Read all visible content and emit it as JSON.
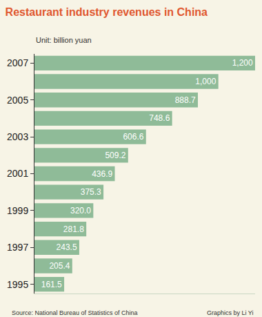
{
  "chart_data": {
    "type": "bar",
    "orientation": "horizontal",
    "title": "Restaurant industry revenues in China",
    "subtitle": "Unit: billion yuan",
    "source": "Source: National Bureau of Statistics of China",
    "credit": "Graphics by Li Yi",
    "categories": [
      "1995",
      null,
      "1997",
      null,
      "1999",
      null,
      "2001",
      null,
      "2003",
      null,
      "2005",
      null,
      "2007"
    ],
    "values": [
      161.5,
      205.4,
      243.5,
      281.8,
      320.0,
      375.3,
      436.9,
      509.2,
      606.6,
      748.6,
      888.7,
      1000,
      1200
    ],
    "value_labels": [
      "161.5",
      "205.4",
      "243.5",
      "281.8",
      "320.0",
      "375.3",
      "436.9",
      "509.2",
      "606.6",
      "748.6",
      "888.7",
      "1,000",
      "1,200"
    ],
    "xlim": [
      0,
      1200
    ],
    "color": "#8fbb98",
    "data_labels": true,
    "tick_labels": "y",
    "grid": false
  }
}
